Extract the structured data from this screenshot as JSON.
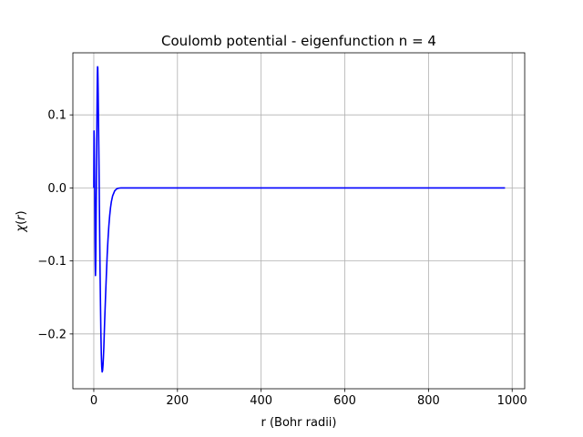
{
  "chart_data": {
    "type": "line",
    "title": "Coulomb potential - eigenfunction n = 4",
    "xlabel": "r  (Bohr radii)",
    "ylabel": "χ(r)",
    "xlim": [
      -50,
      1030
    ],
    "ylim": [
      -0.275,
      0.185
    ],
    "xticks": [
      0,
      200,
      400,
      600,
      800,
      1000
    ],
    "xtick_labels": [
      "0",
      "200",
      "400",
      "600",
      "800",
      "1000"
    ],
    "yticks": [
      -0.2,
      -0.1,
      0.0,
      0.1
    ],
    "ytick_labels": [
      "−0.2",
      "−0.1",
      "0.0",
      "0.1"
    ],
    "grid": true,
    "color": "#0000ff",
    "x": [
      0,
      0.5,
      1,
      1.5,
      2,
      2.5,
      3,
      3.5,
      4,
      4.5,
      5,
      5.5,
      6,
      6.5,
      7,
      7.5,
      8,
      8.5,
      9,
      9.5,
      10,
      10.5,
      11,
      11.5,
      12,
      12.5,
      13,
      13.5,
      14,
      15,
      16,
      17,
      18,
      19,
      20,
      21,
      22,
      23,
      24,
      25,
      26,
      28,
      30,
      32,
      34,
      36,
      38,
      40,
      42,
      45,
      50,
      55,
      60,
      65,
      70,
      75,
      80,
      90,
      100,
      150,
      200,
      300,
      400,
      500,
      600,
      700,
      800,
      900,
      983
    ],
    "y": [
      0.0,
      0.078,
      0.067,
      0.04,
      0.01,
      -0.03,
      -0.075,
      -0.105,
      -0.12,
      -0.11,
      -0.085,
      -0.045,
      -0.01,
      0.02,
      0.055,
      0.095,
      0.13,
      0.155,
      0.166,
      0.165,
      0.15,
      0.13,
      0.105,
      0.08,
      0.055,
      0.03,
      0.0,
      -0.03,
      -0.06,
      -0.115,
      -0.16,
      -0.2,
      -0.228,
      -0.245,
      -0.252,
      -0.25,
      -0.243,
      -0.232,
      -0.218,
      -0.2,
      -0.182,
      -0.15,
      -0.12,
      -0.092,
      -0.07,
      -0.052,
      -0.038,
      -0.027,
      -0.019,
      -0.011,
      -0.004,
      -0.0012,
      -0.0003,
      0.0,
      0.0,
      0.0,
      0.0,
      0.0,
      0.0,
      0.0,
      0.0,
      0.0,
      0.0,
      0.0,
      0.0,
      0.0,
      0.0,
      0.0,
      0.0
    ]
  }
}
